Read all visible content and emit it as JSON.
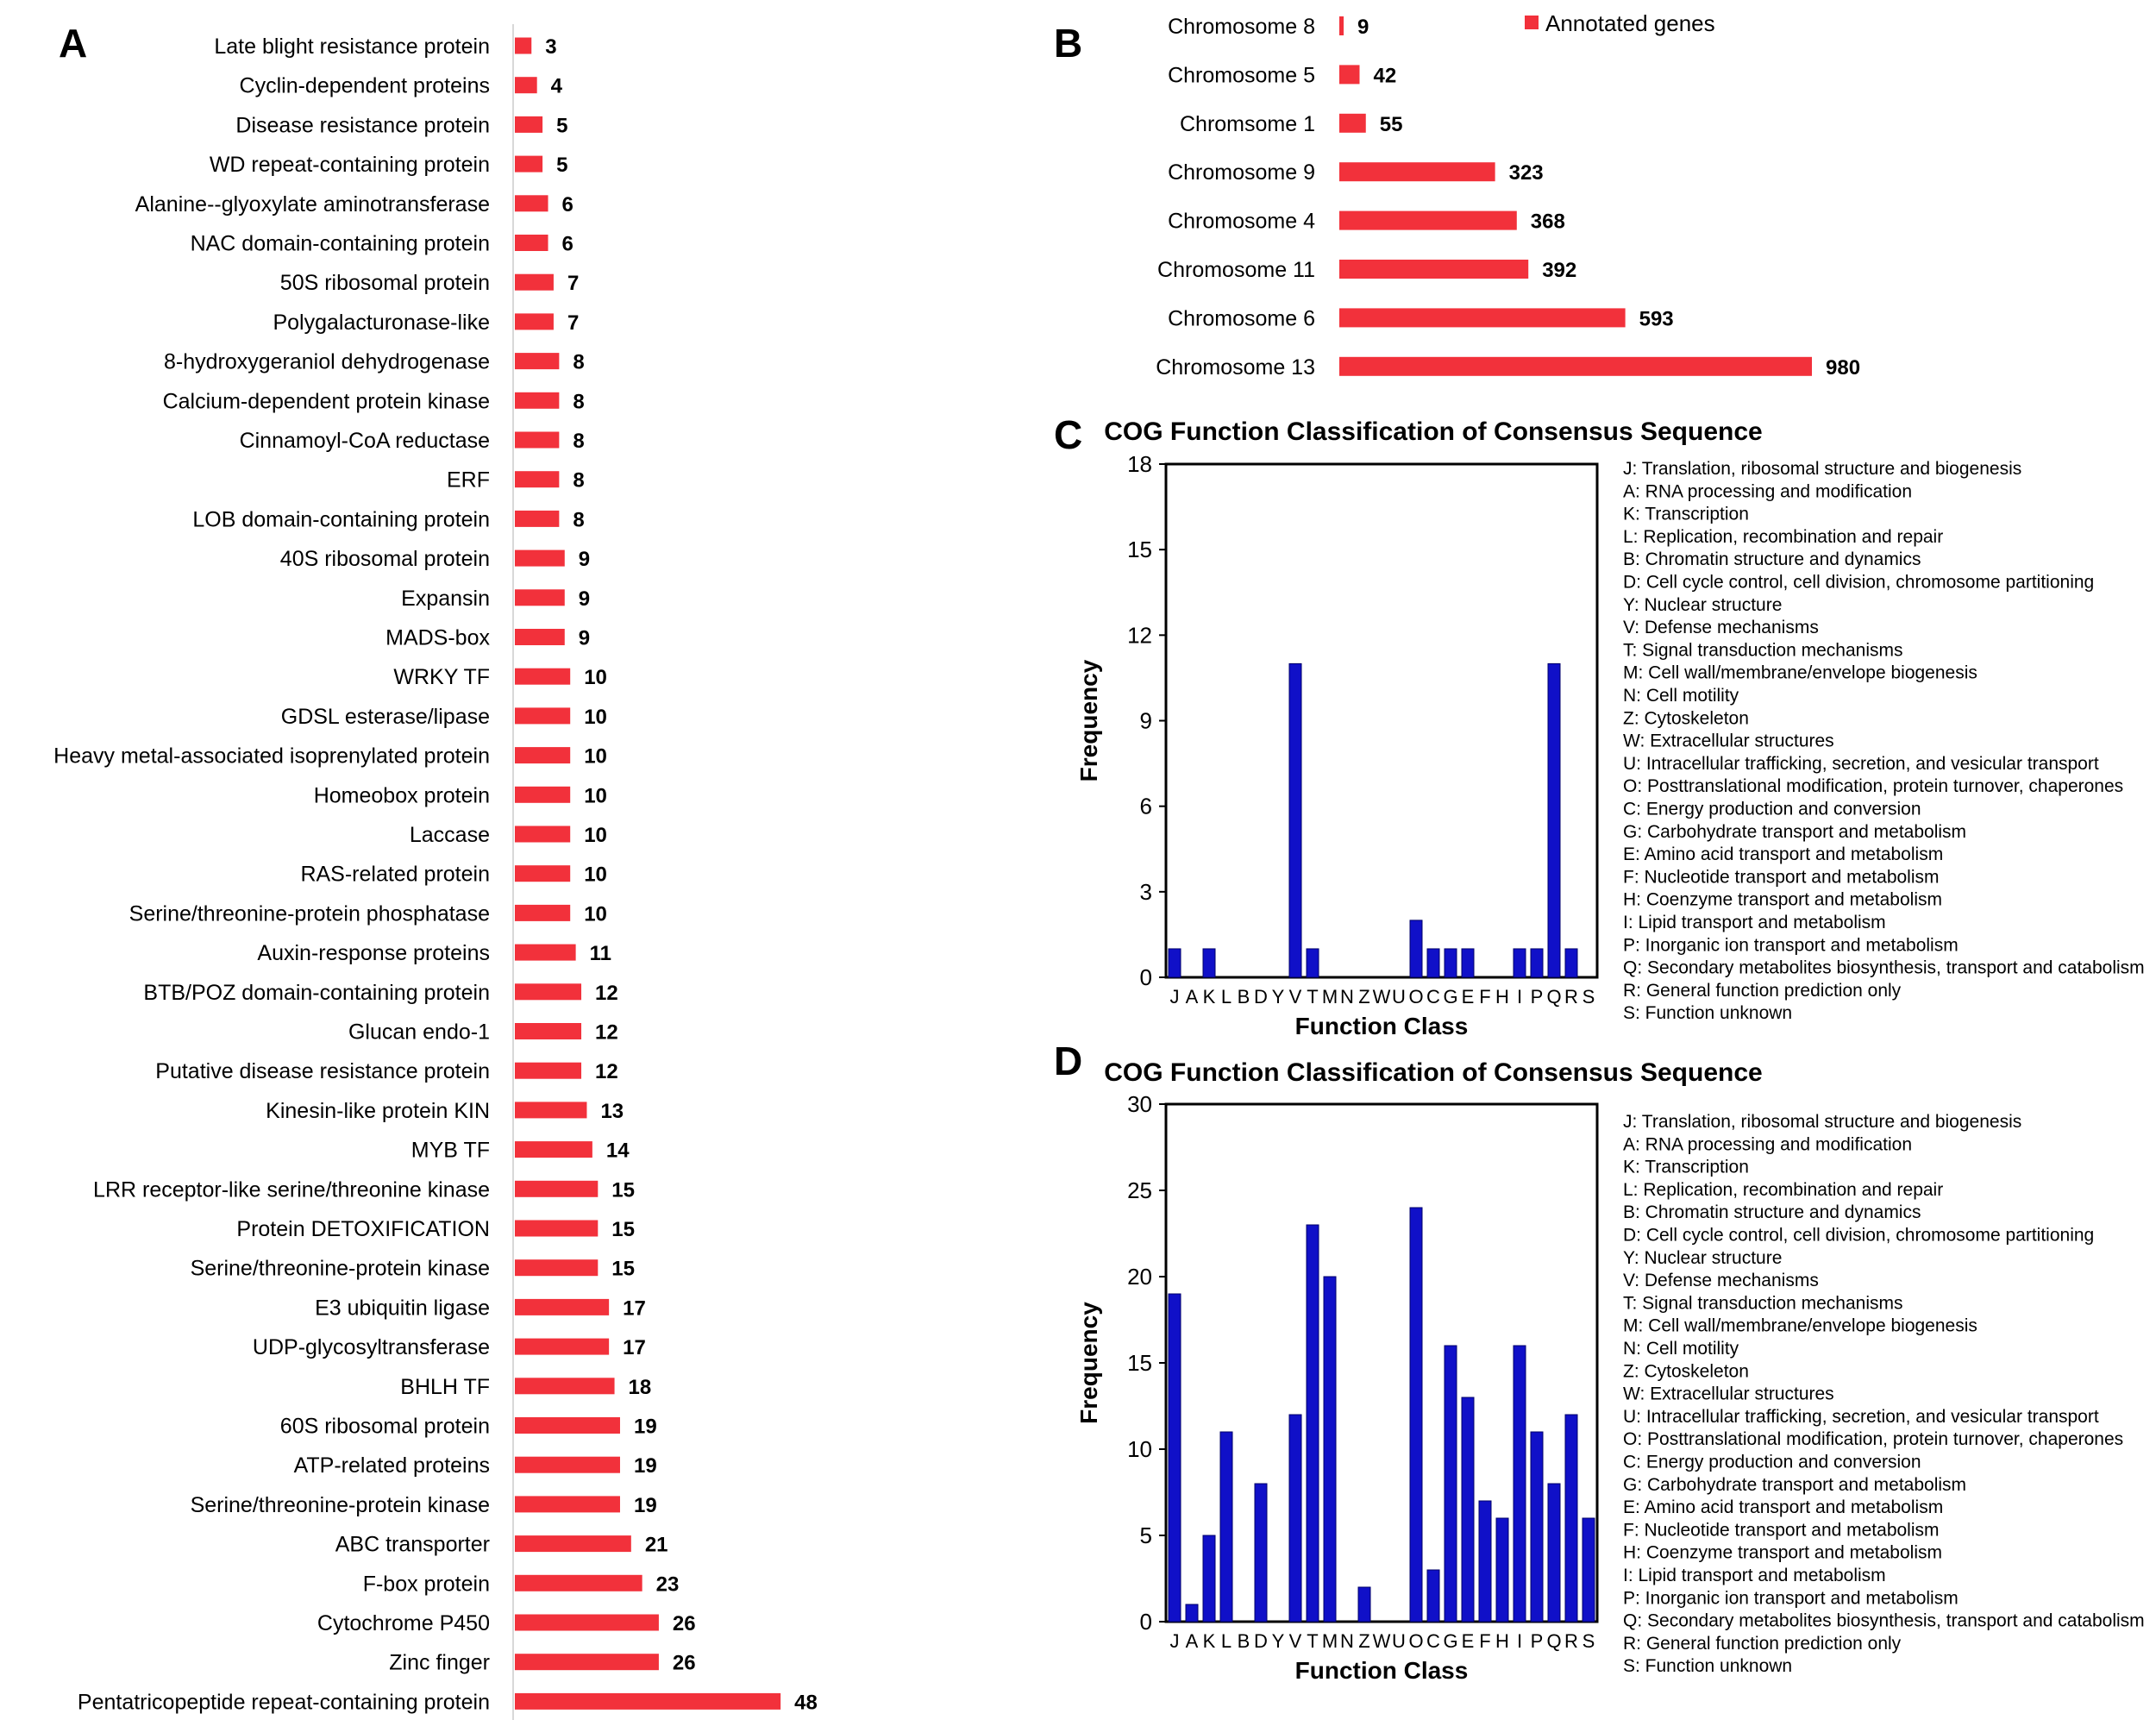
{
  "colors": {
    "bar_red": "#f2313b",
    "bar_blue": "#1010c8",
    "axis": "#000000",
    "divider": "#d8d8d8"
  },
  "chart_data": [
    {
      "panel": "A",
      "type": "bar",
      "orientation": "horizontal",
      "categories": [
        "Late blight resistance protein",
        "Cyclin-dependent proteins",
        "Disease resistance protein",
        "WD repeat-containing protein",
        "Alanine--glyoxylate aminotransferase",
        "NAC domain-containing protein",
        "50S ribosomal protein",
        "Polygalacturonase-like",
        "8-hydroxygeraniol dehydrogenase",
        "Calcium-dependent protein kinase",
        "Cinnamoyl-CoA reductase",
        "ERF",
        "LOB domain-containing protein",
        "40S ribosomal protein",
        "Expansin",
        "MADS-box",
        "WRKY TF",
        "GDSL esterase/lipase",
        "Heavy metal-associated isoprenylated protein",
        "Homeobox protein",
        "Laccase",
        "RAS-related protein",
        "Serine/threonine-protein phosphatase",
        "Auxin-response proteins",
        "BTB/POZ domain-containing protein",
        "Glucan endo-1",
        "Putative disease resistance protein",
        "Kinesin-like protein KIN",
        "MYB TF",
        "LRR receptor-like serine/threonine kinase",
        "Protein DETOXIFICATION",
        "Serine/threonine-protein kinase",
        "E3 ubiquitin ligase",
        "UDP-glycosyltransferase",
        "BHLH TF",
        "60S ribosomal protein",
        "ATP-related proteins",
        "Serine/threonine-protein kinase",
        "ABC transporter",
        "F-box protein",
        "Cytochrome P450",
        "Zinc finger",
        "Pentatricopeptide repeat-containing protein"
      ],
      "values": [
        3,
        4,
        5,
        5,
        6,
        6,
        7,
        7,
        8,
        8,
        8,
        8,
        8,
        9,
        9,
        9,
        10,
        10,
        10,
        10,
        10,
        10,
        10,
        11,
        12,
        12,
        12,
        13,
        14,
        15,
        15,
        15,
        17,
        17,
        18,
        19,
        19,
        19,
        21,
        23,
        26,
        26,
        48
      ],
      "xlim": [
        0,
        50
      ]
    },
    {
      "panel": "B",
      "type": "bar",
      "orientation": "horizontal",
      "categories": [
        "Chromosome 8",
        "Chromosome 5",
        "Chromsome 1",
        "Chromosome 9",
        "Chromosome 4",
        "Chromosome 11",
        "Chromosome 6",
        "Chromosome 13"
      ],
      "values": [
        9,
        42,
        55,
        323,
        368,
        392,
        593,
        980
      ],
      "legend": [
        "Annotated genes"
      ],
      "xlim": [
        0,
        1000
      ]
    },
    {
      "panel": "C",
      "type": "bar",
      "title": "COG Function Classification of Consensus Sequence",
      "xlabel": "Function Class",
      "ylabel": "Frequency",
      "ylim": [
        0,
        18
      ],
      "yticks": [
        0,
        3,
        6,
        9,
        12,
        15,
        18
      ],
      "categories": [
        "J",
        "A",
        "K",
        "L",
        "B",
        "D",
        "Y",
        "V",
        "T",
        "M",
        "N",
        "Z",
        "W",
        "U",
        "O",
        "C",
        "G",
        "E",
        "F",
        "H",
        "I",
        "P",
        "Q",
        "R",
        "S"
      ],
      "values": [
        1,
        0,
        1,
        0,
        0,
        0,
        0,
        11,
        1,
        0,
        0,
        0,
        0,
        0,
        2,
        1,
        1,
        1,
        0,
        0,
        1,
        1,
        11,
        1,
        0
      ],
      "legend": [
        "J: Translation, ribosomal structure and biogenesis",
        "A: RNA processing and modification",
        "K: Transcription",
        "L: Replication, recombination and repair",
        "B: Chromatin structure and dynamics",
        "D: Cell cycle control, cell division, chromosome partitioning",
        "Y: Nuclear structure",
        "V: Defense mechanisms",
        "T: Signal transduction mechanisms",
        "M: Cell wall/membrane/envelope biogenesis",
        "N: Cell motility",
        "Z: Cytoskeleton",
        "W: Extracellular structures",
        "U: Intracellular trafficking, secretion, and vesicular transport",
        "O: Posttranslational modification, protein turnover, chaperones",
        "C: Energy production and conversion",
        "G: Carbohydrate transport and metabolism",
        "E: Amino acid transport and metabolism",
        "F: Nucleotide transport and metabolism",
        "H: Coenzyme transport and metabolism",
        "I: Lipid transport and metabolism",
        "P: Inorganic ion transport and metabolism",
        "Q: Secondary metabolites biosynthesis, transport and catabolism",
        "R: General function prediction only",
        "S: Function unknown"
      ]
    },
    {
      "panel": "D",
      "type": "bar",
      "title": "COG Function Classification of Consensus Sequence",
      "xlabel": "Function Class",
      "ylabel": "Frequency",
      "ylim": [
        0,
        30
      ],
      "yticks": [
        0,
        5,
        10,
        15,
        20,
        25,
        30
      ],
      "categories": [
        "J",
        "A",
        "K",
        "L",
        "B",
        "D",
        "Y",
        "V",
        "T",
        "M",
        "N",
        "Z",
        "W",
        "U",
        "O",
        "C",
        "G",
        "E",
        "F",
        "H",
        "I",
        "P",
        "Q",
        "R",
        "S"
      ],
      "values": [
        19,
        1,
        5,
        11,
        0,
        8,
        0,
        12,
        23,
        20,
        0,
        2,
        0,
        0,
        24,
        3,
        16,
        13,
        7,
        6,
        16,
        11,
        8,
        12,
        6
      ],
      "legend": [
        "J: Translation, ribosomal structure and biogenesis",
        "A: RNA processing and modification",
        "K: Transcription",
        "L: Replication, recombination and repair",
        "B: Chromatin structure and dynamics",
        "D: Cell cycle control, cell division, chromosome partitioning",
        "Y: Nuclear structure",
        "V: Defense mechanisms",
        "T: Signal transduction mechanisms",
        "M: Cell wall/membrane/envelope biogenesis",
        "N: Cell motility",
        "Z: Cytoskeleton",
        "W: Extracellular structures",
        "U: Intracellular trafficking, secretion, and vesicular transport",
        "O: Posttranslational modification, protein turnover, chaperones",
        "C: Energy production and conversion",
        "G: Carbohydrate transport and metabolism",
        "E: Amino acid transport and metabolism",
        "F: Nucleotide transport and metabolism",
        "H: Coenzyme transport and metabolism",
        "I: Lipid transport and metabolism",
        "P: Inorganic ion transport and metabolism",
        "Q: Secondary metabolites biosynthesis, transport and catabolism",
        "R: General function prediction only",
        "S: Function unknown"
      ]
    }
  ]
}
